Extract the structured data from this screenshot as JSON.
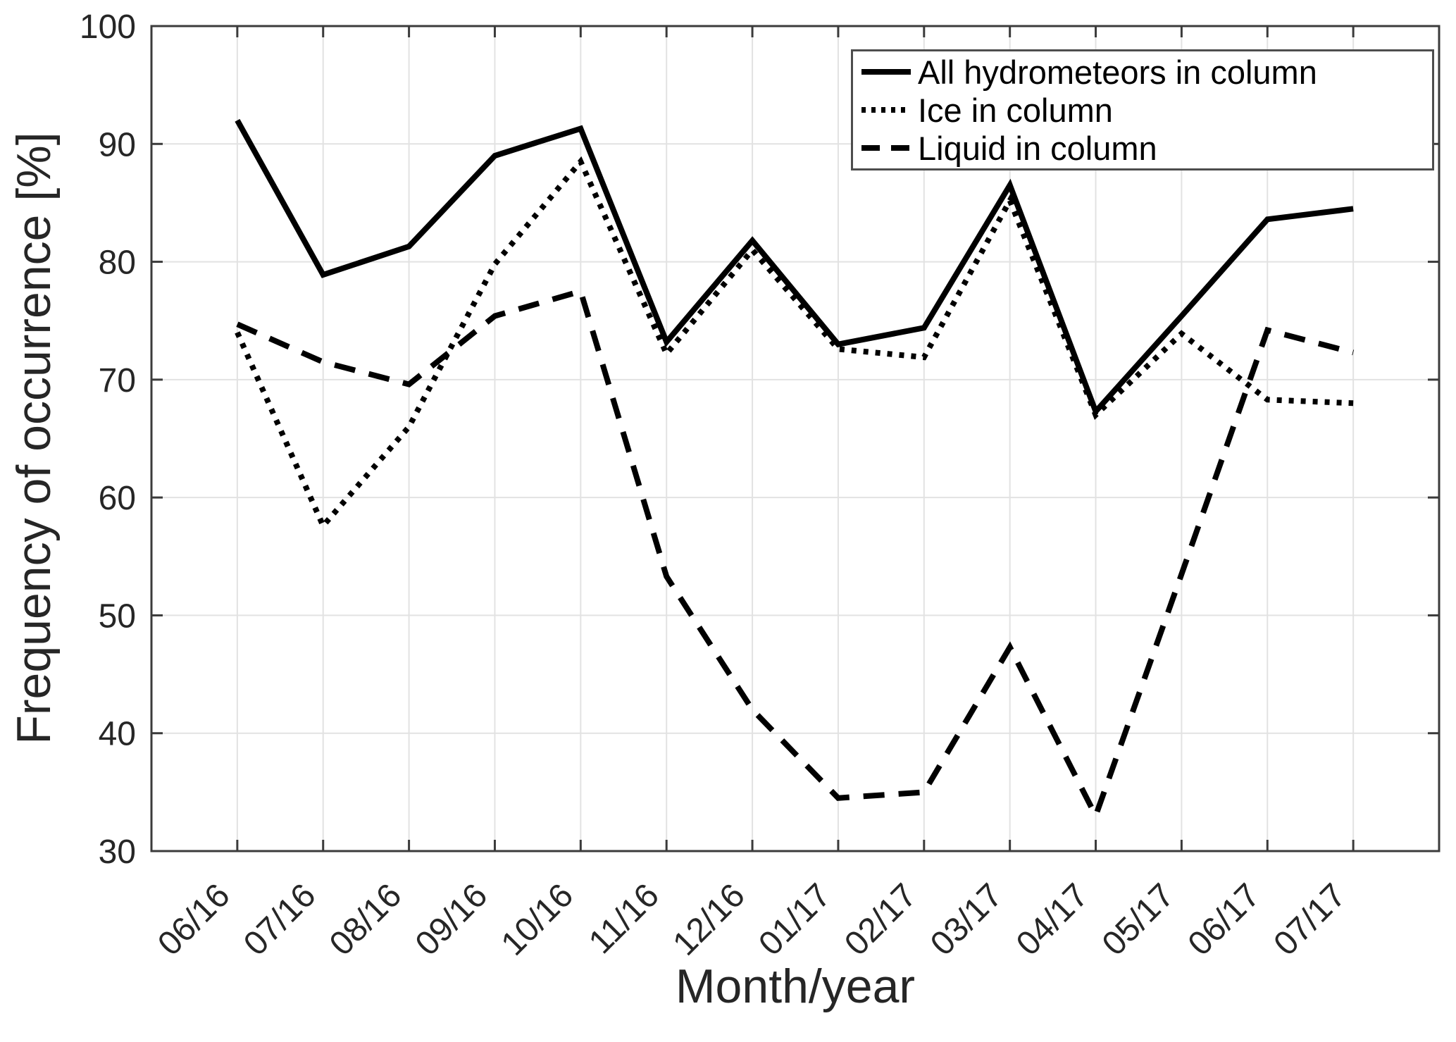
{
  "chart_data": {
    "type": "line",
    "title": "",
    "xlabel": "Month/year",
    "ylabel": "Frequency of occurrence [%]",
    "x": [
      "06/16",
      "07/16",
      "08/16",
      "09/16",
      "10/16",
      "11/16",
      "12/16",
      "01/17",
      "02/17",
      "03/17",
      "04/17",
      "05/17",
      "06/17",
      "07/17"
    ],
    "ylim": [
      30,
      100
    ],
    "yticks": [
      30,
      40,
      50,
      60,
      70,
      80,
      90,
      100
    ],
    "grid": true,
    "legend_position": "top-right-inside",
    "x_tick_rotation_deg": 45,
    "series": [
      {
        "name": "All hydrometeors in column",
        "style": "solid",
        "color": "#000000",
        "values": [
          92.0,
          78.9,
          81.3,
          89.0,
          91.3,
          73.2,
          81.8,
          73.0,
          74.4,
          86.5,
          67.3,
          75.4,
          83.6,
          84.5
        ]
      },
      {
        "name": "Ice in column",
        "style": "dotted",
        "color": "#000000",
        "values": [
          74.0,
          57.6,
          66.0,
          79.8,
          88.5,
          72.2,
          81.0,
          72.6,
          71.9,
          85.2,
          67.0,
          73.9,
          68.3,
          68.0
        ]
      },
      {
        "name": "Liquid in column",
        "style": "dashed",
        "color": "#000000",
        "values": [
          74.7,
          71.5,
          69.6,
          75.4,
          77.5,
          53.3,
          42.0,
          34.5,
          35.0,
          47.3,
          33.0,
          53.5,
          74.2,
          72.3
        ]
      }
    ]
  },
  "colors": {
    "background": "#ffffff",
    "axis": "#3b3b3b",
    "grid": "#e2e2e2",
    "tick_text": "#262626",
    "series_line": "#000000"
  }
}
